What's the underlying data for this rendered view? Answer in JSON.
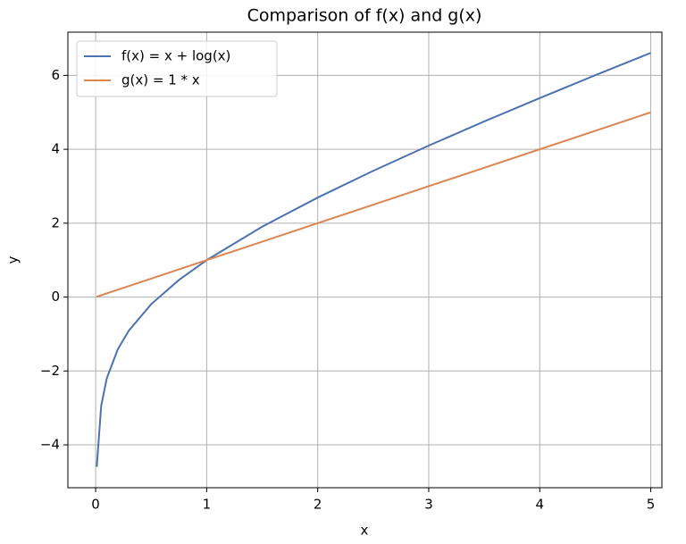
{
  "chart_data": {
    "type": "line",
    "title": "Comparison of f(x) and g(x)",
    "x_label": "x",
    "y_label": "y",
    "x": [
      0.01,
      0.05,
      0.1,
      0.2,
      0.3,
      0.5,
      0.75,
      1,
      1.5,
      2,
      2.5,
      3,
      3.5,
      4,
      4.5,
      5
    ],
    "series": [
      {
        "name": "f(x) = x + log(x)",
        "color": "#4c72b0",
        "values": [
          -4.595,
          -2.946,
          -2.203,
          -1.409,
          -0.904,
          -0.193,
          0.462,
          1,
          1.905,
          2.693,
          3.416,
          4.099,
          4.753,
          5.386,
          6.004,
          6.609
        ]
      },
      {
        "name": "g(x) = 1 * x",
        "color": "#dd8452",
        "values": [
          0.01,
          0.05,
          0.1,
          0.2,
          0.3,
          0.5,
          0.75,
          1,
          1.5,
          2,
          2.5,
          3,
          3.5,
          4,
          4.5,
          5
        ]
      }
    ],
    "xlim": [
      -0.25,
      5.1
    ],
    "ylim": [
      -5.16,
      7.17
    ],
    "xticks": [
      0,
      1,
      2,
      3,
      4,
      5
    ],
    "yticks": [
      {
        "value": -4,
        "label": "−4"
      },
      {
        "value": -2,
        "label": "−2"
      },
      0,
      2,
      4,
      6
    ],
    "grid": true,
    "legend": "upper left"
  }
}
